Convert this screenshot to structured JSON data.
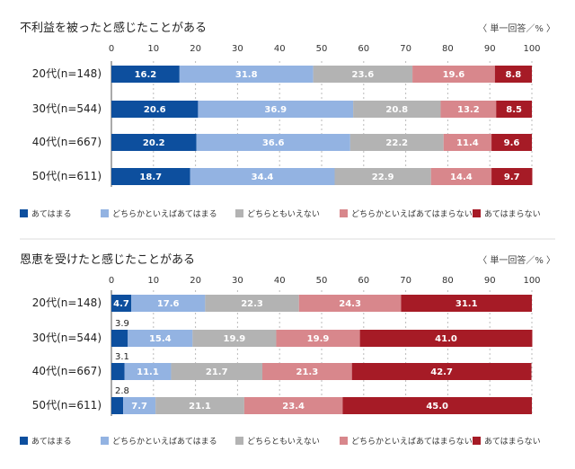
{
  "colors": [
    "#0d4f9e",
    "#93b3e2",
    "#b3b3b3",
    "#d8878c",
    "#a61b26"
  ],
  "unit_note": "〈 単一回答／% 〉",
  "chart_data": [
    {
      "type": "bar",
      "stacked": true,
      "orientation": "horizontal",
      "title": "不利益を被ったと感じたことがある",
      "xlim": [
        0,
        100
      ],
      "ticks": [
        "0",
        "10",
        "20",
        "30",
        "40",
        "50",
        "60",
        "70",
        "80",
        "90",
        "100"
      ],
      "grid": true,
      "legend": "bottom",
      "categories": [
        "20代(n=148)",
        "30代(n=544)",
        "40代(n=667)",
        "50代(n=611)"
      ],
      "series": [
        {
          "name": "あてはまる",
          "values": [
            16.2,
            20.6,
            20.2,
            18.7
          ]
        },
        {
          "name": "どちらかといえばあてはまる",
          "values": [
            31.8,
            36.9,
            36.6,
            34.4
          ]
        },
        {
          "name": "どちらともいえない",
          "values": [
            23.6,
            20.8,
            22.2,
            22.9
          ]
        },
        {
          "name": "どちらかといえばあてはまらない",
          "values": [
            19.6,
            13.2,
            11.4,
            14.4
          ]
        },
        {
          "name": "あてはまらない",
          "values": [
            8.8,
            8.5,
            9.6,
            9.7
          ]
        }
      ]
    },
    {
      "type": "bar",
      "stacked": true,
      "orientation": "horizontal",
      "title": "恩恵を受けたと感じたことがある",
      "xlim": [
        0,
        100
      ],
      "ticks": [
        "0",
        "10",
        "20",
        "30",
        "40",
        "50",
        "60",
        "70",
        "80",
        "90",
        "100"
      ],
      "grid": true,
      "legend": "bottom",
      "categories": [
        "20代(n=148)",
        "30代(n=544)",
        "40代(n=667)",
        "50代(n=611)"
      ],
      "series": [
        {
          "name": "あてはまる",
          "values": [
            4.7,
            3.9,
            3.1,
            2.8
          ]
        },
        {
          "name": "どちらかといえばあてはまる",
          "values": [
            17.6,
            15.4,
            11.1,
            7.7
          ]
        },
        {
          "name": "どちらともいえない",
          "values": [
            22.3,
            19.9,
            21.7,
            21.1
          ]
        },
        {
          "name": "どちらかといえばあてはまらない",
          "values": [
            24.3,
            19.9,
            21.3,
            23.4
          ]
        },
        {
          "name": "あてはまらない",
          "values": [
            31.1,
            41.0,
            42.7,
            45.0
          ]
        }
      ]
    }
  ]
}
